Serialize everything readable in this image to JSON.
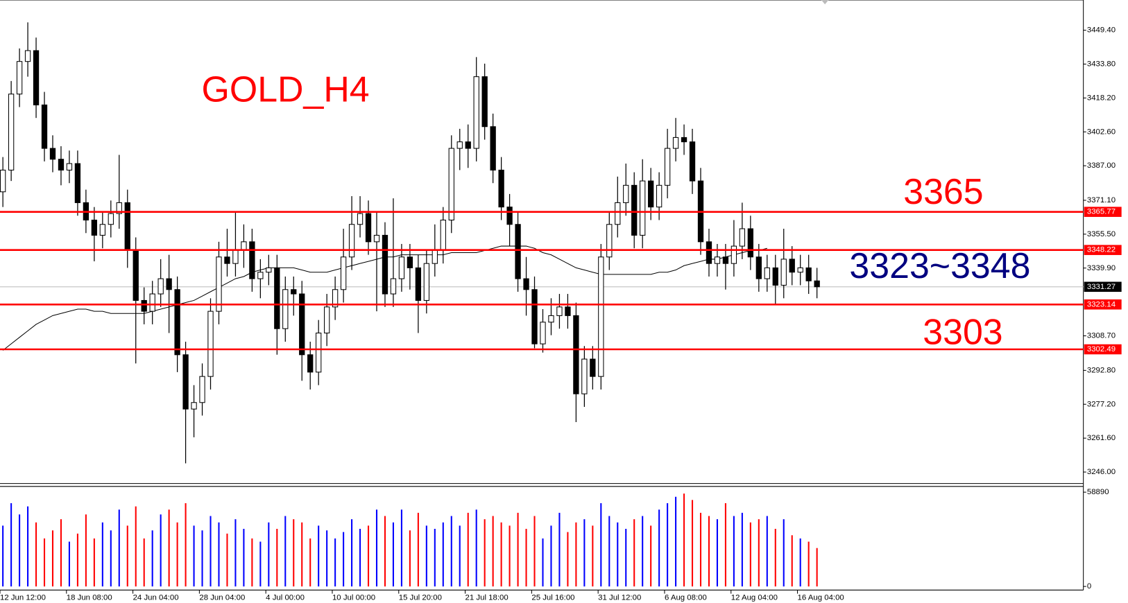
{
  "chart_data": {
    "type": "candlestick",
    "title": "GOLD_H4",
    "title_color": "#ff0000",
    "annotations": [
      {
        "text": "3365",
        "color": "#ff0000"
      },
      {
        "text": "3323~3348",
        "color": "#000080"
      },
      {
        "text": "3303",
        "color": "#ff0000"
      }
    ],
    "categories": [
      "12 Jun 12:00",
      null,
      null,
      null,
      null,
      null,
      null,
      null,
      "18 Jun 08:00",
      null,
      null,
      null,
      null,
      null,
      null,
      null,
      "24 Jun 04:00",
      null,
      null,
      null,
      null,
      null,
      null,
      null,
      "28 Jun 04:00",
      null,
      null,
      null,
      null,
      null,
      null,
      null,
      "4 Jul 00:00",
      null,
      null,
      null,
      null,
      null,
      null,
      null,
      "10 Jul 00:00",
      null,
      null,
      null,
      null,
      null,
      null,
      null,
      "15 Jul 20:00",
      null,
      null,
      null,
      null,
      null,
      null,
      null,
      "21 Jul 18:00",
      null,
      null,
      null,
      null,
      null,
      null,
      null,
      "25 Jul 16:00",
      null,
      null,
      null,
      null,
      null,
      null,
      null,
      "31 Jul 12:00",
      null,
      null,
      null,
      null,
      null,
      null,
      null,
      "6 Aug 08:00",
      null,
      null,
      null,
      null,
      null,
      null,
      null,
      "12 Aug 04:00",
      null,
      null,
      null,
      null,
      null,
      null,
      null,
      "16 Aug 04:00",
      null,
      null
    ],
    "open": [
      3375,
      3385,
      3420,
      3435,
      3440,
      3415,
      3395,
      3390,
      3385,
      3388,
      3370,
      3362,
      3355,
      3360,
      3365,
      3370,
      3348,
      3325,
      3320,
      3328,
      3335,
      3330,
      3300,
      3275,
      3278,
      3290,
      3320,
      3345,
      3342,
      3348,
      3352,
      3335,
      3338,
      3340,
      3312,
      3330,
      3328,
      3300,
      3292,
      3310,
      3322,
      3330,
      3345,
      3360,
      3365,
      3352,
      3355,
      3328,
      3335,
      3345,
      3340,
      3325,
      3342,
      3348,
      3362,
      3395,
      3398,
      3395,
      3428,
      3405,
      3385,
      3368,
      3360,
      3335,
      3330,
      3305,
      3315,
      3318,
      3322,
      3318,
      3282,
      3298,
      3290,
      3345,
      3360,
      3370,
      3378,
      3355,
      3380,
      3368,
      3378,
      3395,
      3400,
      3398,
      3380,
      3352,
      3342,
      3345,
      3342,
      3350,
      3358,
      3345,
      3335,
      3340,
      3332,
      3344,
      3338,
      3340,
      3334
    ],
    "high": [
      3391,
      3426,
      3441,
      3453,
      3446,
      3421,
      3401,
      3396,
      3394,
      3394,
      3376,
      3368,
      3366,
      3371,
      3392,
      3376,
      3354,
      3331,
      3334,
      3344,
      3346,
      3336,
      3306,
      3286,
      3296,
      3326,
      3352,
      3358,
      3366,
      3360,
      3358,
      3344,
      3346,
      3346,
      3336,
      3336,
      3334,
      3306,
      3316,
      3328,
      3336,
      3358,
      3373,
      3373,
      3371,
      3366,
      3361,
      3372,
      3351,
      3351,
      3346,
      3348,
      3360,
      3368,
      3401,
      3404,
      3406,
      3437,
      3434,
      3411,
      3391,
      3374,
      3366,
      3345,
      3336,
      3321,
      3326,
      3328,
      3328,
      3324,
      3304,
      3304,
      3351,
      3366,
      3382,
      3388,
      3384,
      3390,
      3386,
      3384,
      3404,
      3409,
      3406,
      3404,
      3386,
      3358,
      3351,
      3351,
      3362,
      3370,
      3364,
      3351,
      3346,
      3346,
      3358,
      3350,
      3346,
      3346,
      3340
    ],
    "low": [
      3368,
      3380,
      3414,
      3428,
      3409,
      3389,
      3384,
      3378,
      3379,
      3364,
      3356,
      3343,
      3349,
      3354,
      3358,
      3340,
      3296,
      3314,
      3314,
      3322,
      3310,
      3292,
      3250,
      3262,
      3272,
      3284,
      3314,
      3336,
      3336,
      3340,
      3329,
      3326,
      3332,
      3300,
      3306,
      3318,
      3288,
      3284,
      3286,
      3304,
      3316,
      3324,
      3339,
      3354,
      3346,
      3320,
      3322,
      3322,
      3329,
      3330,
      3310,
      3319,
      3336,
      3342,
      3356,
      3385,
      3386,
      3389,
      3399,
      3379,
      3362,
      3350,
      3329,
      3318,
      3303,
      3301,
      3309,
      3312,
      3312,
      3269,
      3276,
      3284,
      3284,
      3339,
      3354,
      3364,
      3349,
      3349,
      3362,
      3362,
      3372,
      3389,
      3392,
      3374,
      3346,
      3336,
      3336,
      3330,
      3336,
      3344,
      3339,
      3329,
      3329,
      3323,
      3326,
      3332,
      3332,
      3328,
      3326
    ],
    "close": [
      3385,
      3420,
      3435,
      3440,
      3415,
      3395,
      3390,
      3385,
      3388,
      3370,
      3362,
      3355,
      3360,
      3365,
      3370,
      3348,
      3325,
      3320,
      3328,
      3335,
      3330,
      3300,
      3275,
      3278,
      3290,
      3320,
      3345,
      3342,
      3348,
      3352,
      3335,
      3338,
      3340,
      3312,
      3330,
      3328,
      3300,
      3292,
      3310,
      3322,
      3330,
      3345,
      3360,
      3365,
      3352,
      3355,
      3328,
      3335,
      3345,
      3340,
      3325,
      3342,
      3348,
      3362,
      3395,
      3398,
      3395,
      3428,
      3405,
      3385,
      3368,
      3360,
      3335,
      3330,
      3305,
      3315,
      3318,
      3322,
      3318,
      3282,
      3298,
      3290,
      3345,
      3360,
      3370,
      3378,
      3355,
      3380,
      3368,
      3378,
      3395,
      3400,
      3398,
      3380,
      3352,
      3342,
      3345,
      3342,
      3350,
      3358,
      3345,
      3335,
      3340,
      3332,
      3344,
      3338,
      3340,
      3334,
      3331.27
    ],
    "moving_average": [
      3302,
      3305,
      3308,
      3311,
      3314,
      3316,
      3318,
      3319,
      3320,
      3321,
      3321,
      3320,
      3320,
      3319,
      3319,
      3319,
      3319,
      3319,
      3320,
      3321,
      3322,
      3323,
      3324,
      3325,
      3327,
      3329,
      3331,
      3333,
      3335,
      3336,
      3338,
      3339,
      3340,
      3340,
      3340,
      3340,
      3339,
      3338,
      3338,
      3338,
      3339,
      3340,
      3341,
      3342,
      3343,
      3344,
      3345,
      3345,
      3346,
      3346,
      3346,
      3346,
      3346,
      3346,
      3347,
      3347,
      3347,
      3347,
      3348,
      3349,
      3350,
      3350,
      3350,
      3350,
      3349,
      3347,
      3346,
      3344,
      3342,
      3340,
      3339,
      3338,
      3337,
      3337,
      3337,
      3337,
      3337,
      3337,
      3337,
      3338,
      3338,
      3339,
      3341,
      3342,
      3343,
      3344,
      3344,
      3345,
      3346,
      3347,
      3348,
      3348,
      3349,
      null,
      null,
      null,
      null,
      null,
      null
    ],
    "volume": [
      38000,
      52000,
      45000,
      50000,
      40000,
      30000,
      35000,
      42000,
      28000,
      33000,
      45000,
      30000,
      40000,
      35000,
      48000,
      38000,
      50000,
      30000,
      35000,
      45000,
      48000,
      40000,
      52000,
      38000,
      35000,
      44000,
      40000,
      33000,
      42000,
      36000,
      30000,
      28000,
      40000,
      36000,
      44000,
      42000,
      40000,
      30000,
      38000,
      35000,
      30000,
      34000,
      42000,
      36000,
      38000,
      48000,
      44000,
      40000,
      48000,
      35000,
      46000,
      38000,
      36000,
      40000,
      44000,
      38000,
      46000,
      48000,
      42000,
      44000,
      40000,
      38000,
      46000,
      36000,
      44000,
      30000,
      38000,
      46000,
      34000,
      40000,
      42000,
      38000,
      52000,
      44000,
      40000,
      36000,
      42000,
      44000,
      38000,
      48000,
      52000,
      56000,
      58000,
      54000,
      46000,
      44000,
      42000,
      52000,
      44000,
      46000,
      40000,
      42000,
      44000,
      36000,
      42000,
      32000,
      30000,
      28000,
      24000
    ],
    "up_volume_color": "#0000ff",
    "down_volume_color": "#ff0000",
    "ma_color": "#000000",
    "levels": [
      3365.77,
      3348.22,
      3323.14,
      3302.49
    ],
    "level_color": "#ff0000",
    "ylim": [
      3240.7,
      3463.3
    ],
    "yticks": [
      {
        "value": 3449.4,
        "label": "3449.40"
      },
      {
        "value": 3433.8,
        "label": "3433.80"
      },
      {
        "value": 3418.2,
        "label": "3418.20"
      },
      {
        "value": 3402.6,
        "label": "3402.60"
      },
      {
        "value": 3387,
        "label": "3387.00"
      },
      {
        "value": 3371.1,
        "label": "3371.10"
      },
      {
        "value": 3355.5,
        "label": "3355.50"
      },
      {
        "value": 3339.9,
        "label": "3339.90"
      },
      {
        "value": 3308.7,
        "label": "3308.70"
      },
      {
        "value": 3292.8,
        "label": "3292.80"
      },
      {
        "value": 3277.2,
        "label": "3277.20"
      },
      {
        "value": 3261.6,
        "label": "3261.60"
      },
      {
        "value": 3246,
        "label": "3246.00"
      }
    ],
    "volume_ylim": [
      0,
      58890
    ],
    "volume_yticks": [
      58890,
      0
    ]
  }
}
